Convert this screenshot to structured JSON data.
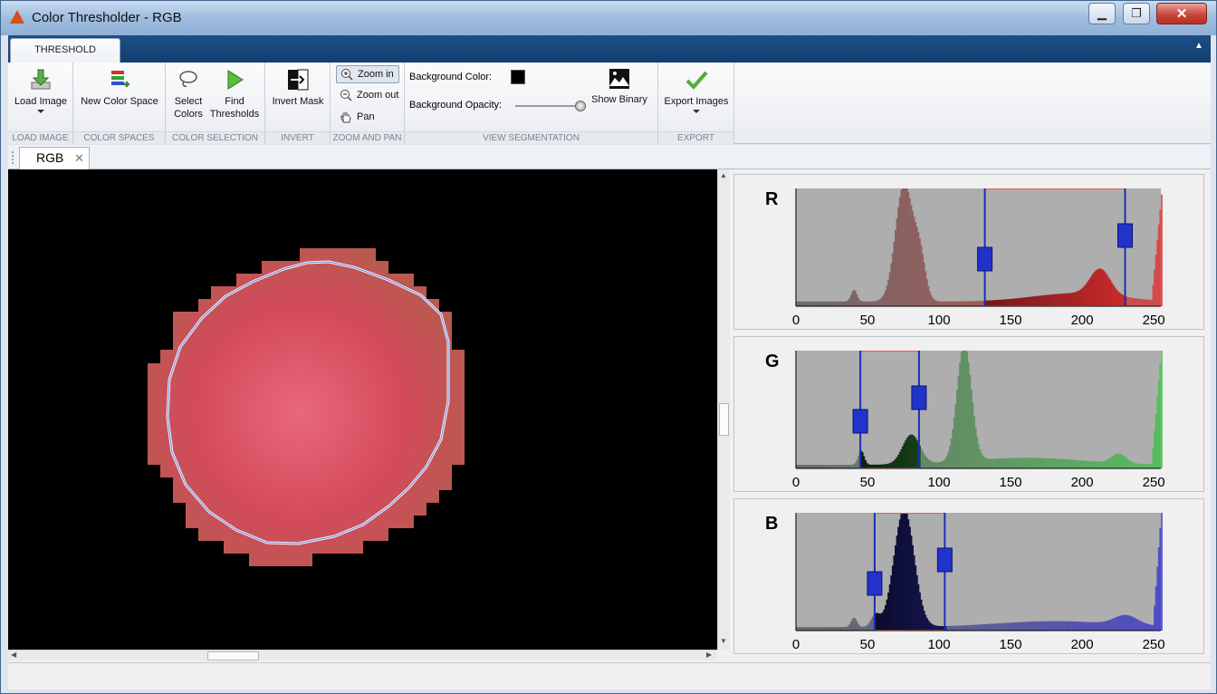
{
  "window": {
    "title": "Color Thresholder - RGB",
    "minimize": "▁",
    "maximize": "❐",
    "close": "✕"
  },
  "ribbon": {
    "tab": "THRESHOLD",
    "groups": {
      "load_image": "LOAD IMAGE",
      "color_spaces": "COLOR SPACES",
      "color_selection": "COLOR SELECTION",
      "invert": "INVERT",
      "zoom_pan": "ZOOM AND PAN",
      "view_segmentation": "VIEW SEGMENTATION",
      "export": "EXPORT"
    },
    "buttons": {
      "load_image": "Load Image",
      "new_color_space": "New Color Space",
      "select_colors_1": "Select",
      "select_colors_2": "Colors",
      "find_thresholds_1": "Find",
      "find_thresholds_2": "Thresholds",
      "invert_mask": "Invert Mask",
      "zoom_in": "Zoom in",
      "zoom_out": "Zoom out",
      "pan": "Pan",
      "background_color": "Background Color:",
      "background_opacity": "Background Opacity:",
      "show_binary": "Show Binary",
      "export_images": "Export Images"
    },
    "background_color_value": "#000000",
    "background_opacity_value": 1.0
  },
  "document": {
    "tab": "RGB",
    "tab_close": "✕"
  },
  "histograms": [
    {
      "channel": "R",
      "color": "#e03030",
      "low": 132,
      "high": 230,
      "ticks": [
        "0",
        "50",
        "100",
        "150",
        "200",
        "250"
      ]
    },
    {
      "channel": "G",
      "color": "#3fc04a",
      "low": 45,
      "high": 86,
      "ticks": [
        "0",
        "50",
        "100",
        "150",
        "200",
        "250"
      ]
    },
    {
      "channel": "B",
      "color": "#3535cc",
      "low": 55,
      "high": 104,
      "ticks": [
        "0",
        "50",
        "100",
        "150",
        "200",
        "250"
      ]
    }
  ]
}
